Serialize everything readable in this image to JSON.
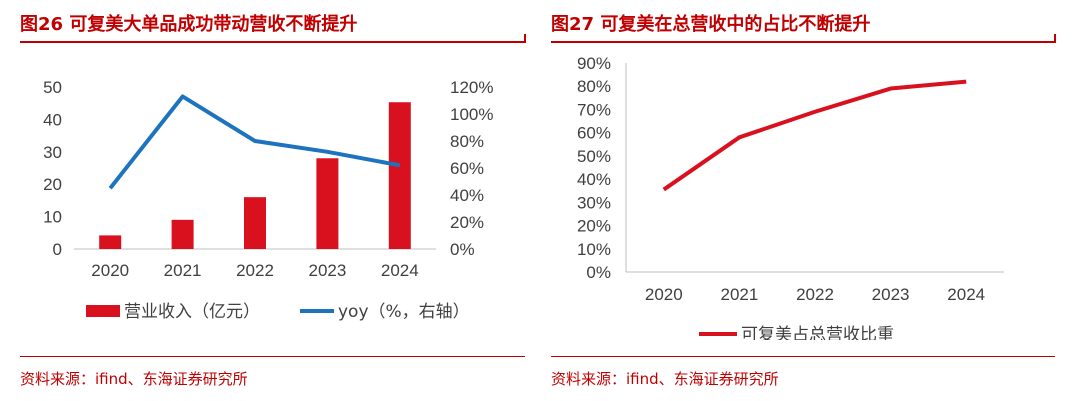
{
  "left": {
    "title": "图26  可复美大单品成功带动营收不断提升",
    "source": "资料来源：ifind、东海证券研究所",
    "chart_data": {
      "type": "bar",
      "categories": [
        "2020",
        "2021",
        "2022",
        "2023",
        "2024"
      ],
      "series": [
        {
          "name": "营业收入（亿元）",
          "kind": "bar",
          "axis": "left",
          "color": "#D9111E",
          "values": [
            4.2,
            9.0,
            16.0,
            28.0,
            45.3
          ]
        },
        {
          "name": "yoy（%，右轴）",
          "kind": "line",
          "axis": "right",
          "color": "#1E73BE",
          "values": [
            45,
            113,
            80,
            72,
            62
          ]
        }
      ],
      "y_left": {
        "min": 0,
        "max": 50,
        "ticks": [
          "0",
          "10",
          "20",
          "30",
          "40",
          "50"
        ]
      },
      "y_right": {
        "min": 0,
        "max": 120,
        "ticks": [
          "0%",
          "20%",
          "40%",
          "60%",
          "80%",
          "100%",
          "120%"
        ]
      },
      "grid": false,
      "legend_position": "bottom"
    }
  },
  "right": {
    "title": "图27  可复美在总营收中的占比不断提升",
    "source": "资料来源：ifind、东海证券研究所",
    "chart_data": {
      "type": "line",
      "categories": [
        "2020",
        "2021",
        "2022",
        "2023",
        "2024"
      ],
      "series": [
        {
          "name": "可复美占总营收比重",
          "color": "#D9111E",
          "values": [
            35.5,
            58,
            69,
            79,
            82
          ]
        }
      ],
      "y": {
        "min": 0,
        "max": 90,
        "ticks": [
          "0%",
          "10%",
          "20%",
          "30%",
          "40%",
          "50%",
          "60%",
          "70%",
          "80%",
          "90%"
        ]
      },
      "grid": false,
      "legend_position": "bottom"
    }
  }
}
